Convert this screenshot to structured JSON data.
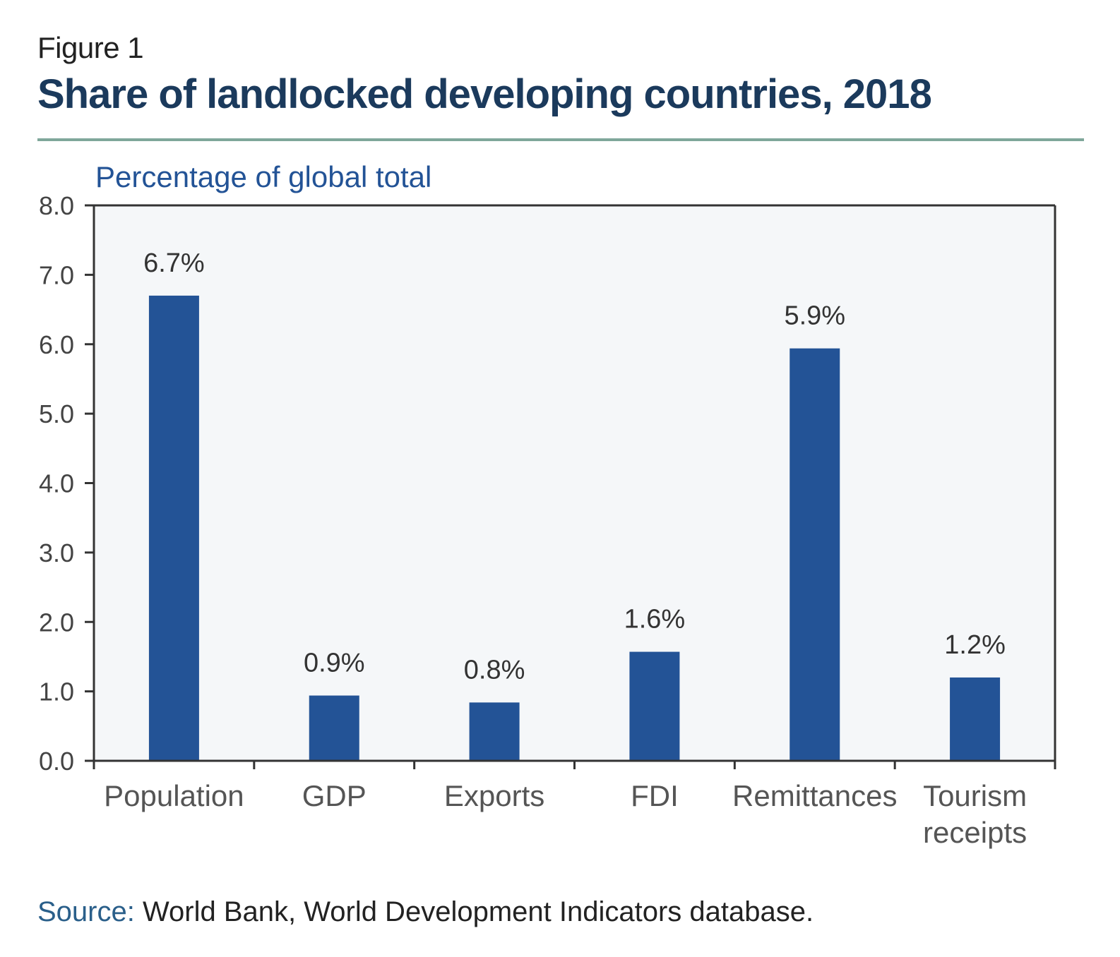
{
  "figure_label": "Figure 1",
  "title": "Share of landlocked developing countries, 2018",
  "source_label": "Source:",
  "source_text": " World Bank, World Development Indicators database.",
  "colors": {
    "bar": "#235396",
    "plot_bg": "#f5f7f9",
    "axis": "#333333",
    "ylabel": "#235396",
    "title": "#1b3a5c",
    "rule": "#7fa79a"
  },
  "chart_data": {
    "type": "bar",
    "ylabel": "Percentage of global total",
    "xlabel": "",
    "ylim": [
      0,
      8
    ],
    "yticks": [
      0,
      1,
      2,
      3,
      4,
      5,
      6,
      7,
      8
    ],
    "ytick_labels": [
      "0.0",
      "1.0",
      "2.0",
      "3.0",
      "4.0",
      "5.0",
      "6.0",
      "7.0",
      "8.0"
    ],
    "categories": [
      [
        "Population"
      ],
      [
        "GDP"
      ],
      [
        "Exports"
      ],
      [
        "FDI"
      ],
      [
        "Remittances"
      ],
      [
        "Tourism",
        "receipts"
      ]
    ],
    "values": [
      6.7,
      0.94,
      0.84,
      1.57,
      5.94,
      1.2
    ],
    "data_labels": [
      "6.7%",
      "0.9%",
      "0.8%",
      "1.6%",
      "5.9%",
      "1.2%"
    ],
    "grid": false
  }
}
